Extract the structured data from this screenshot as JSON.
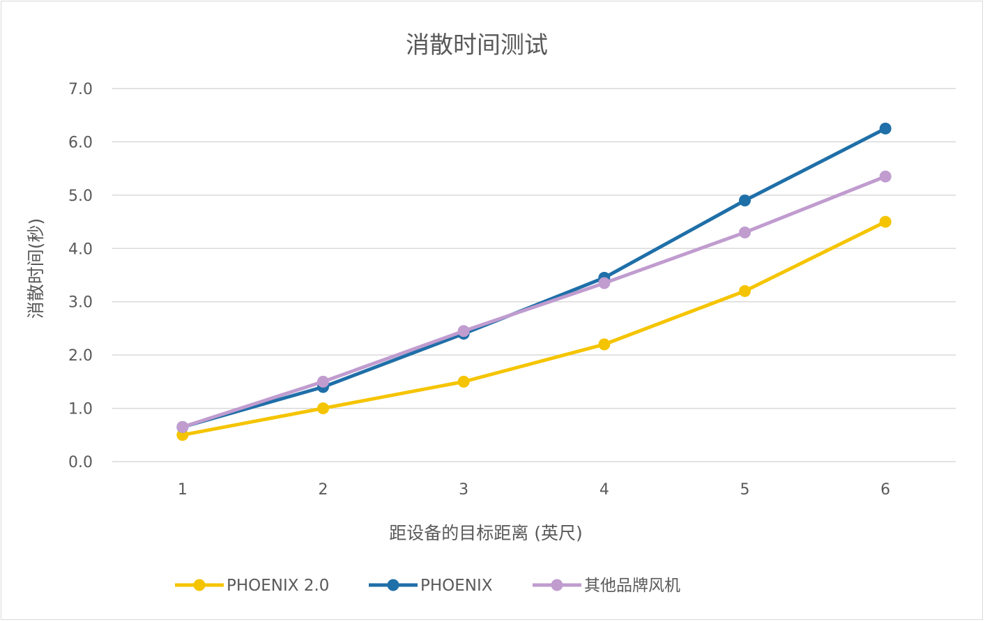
{
  "chart_data": {
    "type": "line",
    "title": "消散时间测试",
    "xlabel": "距设备的目标距离 (英尺)",
    "ylabel": "消散时间(秒)",
    "categories": [
      "1",
      "2",
      "3",
      "4",
      "5",
      "6"
    ],
    "ylim": [
      0,
      7
    ],
    "yticks": [
      "0.0",
      "1.0",
      "2.0",
      "3.0",
      "4.0",
      "5.0",
      "6.0",
      "7.0"
    ],
    "grid": true,
    "legend_position": "bottom",
    "series": [
      {
        "name": "PHOENIX 2.0",
        "color": "#F5C400",
        "values": [
          0.5,
          1.0,
          1.5,
          2.2,
          3.2,
          4.5
        ]
      },
      {
        "name": "PHOENIX",
        "color": "#1F6FA8",
        "values": [
          0.65,
          1.4,
          2.4,
          3.45,
          4.9,
          6.25
        ]
      },
      {
        "name": "其他品牌风机",
        "color": "#C09CCF",
        "values": [
          0.65,
          1.5,
          2.45,
          3.35,
          4.3,
          5.35
        ]
      }
    ]
  }
}
